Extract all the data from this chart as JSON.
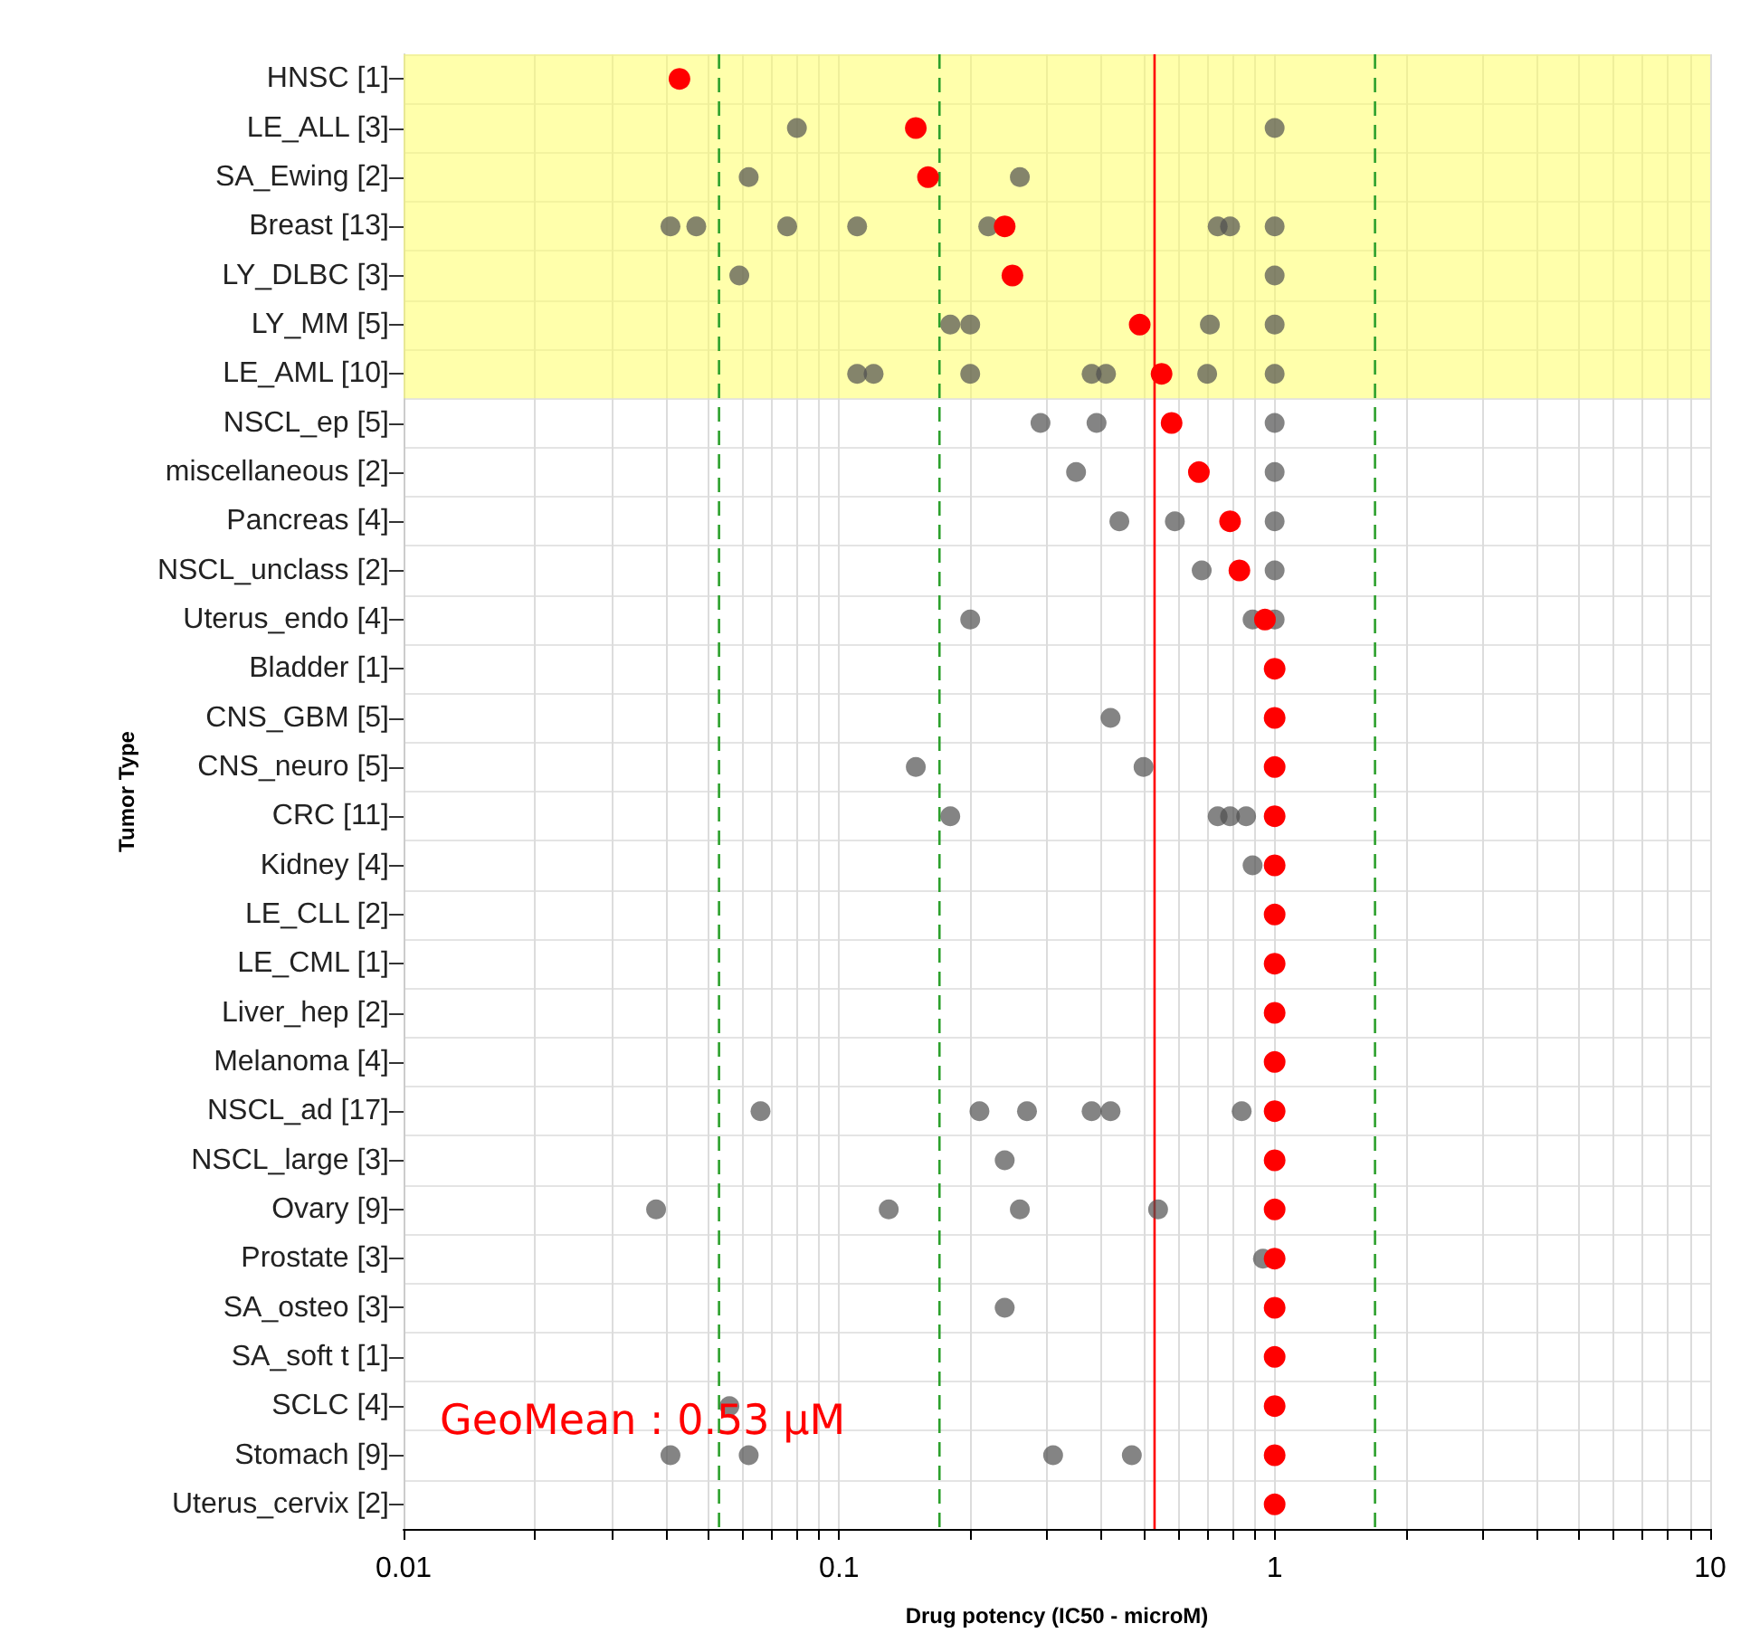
{
  "chart_data": {
    "type": "scatter",
    "orientation": "horizontal",
    "xlabel": "Drug potency (IC50 - microM)",
    "ylabel": "Tumor Type",
    "categories": [
      "HNSC [1]",
      "LE_ALL [3]",
      "SA_Ewing [2]",
      "Breast [13]",
      "LY_DLBC [3]",
      "LY_MM [5]",
      "LE_AML [10]",
      "NSCL_ep [5]",
      "miscellaneous [2]",
      "Pancreas [4]",
      "NSCL_unclass [2]",
      "Uterus_endo [4]",
      "Bladder [1]",
      "CNS_GBM [5]",
      "CNS_neuro [5]",
      "CRC [11]",
      "Kidney [4]",
      "LE_CLL [2]",
      "LE_CML [1]",
      "Liver_hep [2]",
      "Melanoma [4]",
      "NSCL_ad [17]",
      "NSCL_large [3]",
      "Ovary [9]",
      "Prostate [3]",
      "SA_osteo [3]",
      "SA_soft t [1]",
      "SCLC [4]",
      "Stomach [9]",
      "Uterus_cervix [2]"
    ],
    "series": [
      {
        "color": "#505050",
        "x": [
          "LE_ALL [3]",
          "LE_ALL [3]",
          "SA_Ewing [2]",
          "SA_Ewing [2]",
          "Breast [13]",
          "Breast [13]",
          "Breast [13]",
          "Breast [13]",
          "Breast [13]",
          "Breast [13]",
          "Breast [13]",
          "Breast [13]",
          "LY_DLBC [3]",
          "LY_DLBC [3]",
          "LY_MM [5]",
          "LY_MM [5]",
          "LY_MM [5]",
          "LY_MM [5]",
          "LE_AML [10]",
          "LE_AML [10]",
          "LE_AML [10]",
          "LE_AML [10]",
          "LE_AML [10]",
          "LE_AML [10]",
          "LE_AML [10]",
          "NSCL_ep [5]",
          "NSCL_ep [5]",
          "NSCL_ep [5]",
          "miscellaneous [2]",
          "miscellaneous [2]",
          "Pancreas [4]",
          "Pancreas [4]",
          "Pancreas [4]",
          "NSCL_unclass [2]",
          "NSCL_unclass [2]",
          "Uterus_endo [4]",
          "Uterus_endo [4]",
          "Uterus_endo [4]",
          "CNS_GBM [5]",
          "CNS_neuro [5]",
          "CNS_neuro [5]",
          "CRC [11]",
          "CRC [11]",
          "CRC [11]",
          "CRC [11]",
          "Kidney [4]",
          "NSCL_ad [17]",
          "NSCL_ad [17]",
          "NSCL_ad [17]",
          "NSCL_ad [17]",
          "NSCL_ad [17]",
          "NSCL_ad [17]",
          "NSCL_large [3]",
          "Ovary [9]",
          "Ovary [9]",
          "Ovary [9]",
          "Ovary [9]",
          "Prostate [3]",
          "SA_osteo [3]",
          "SCLC [4]",
          "Stomach [9]",
          "Stomach [9]",
          "Stomach [9]",
          "Stomach [9]"
        ],
        "values": [
          0.08,
          1,
          0.062,
          0.26,
          0.041,
          0.047,
          0.076,
          0.11,
          0.22,
          0.74,
          0.79,
          1,
          0.059,
          1,
          0.18,
          0.2,
          0.71,
          1,
          0.11,
          0.12,
          0.2,
          0.38,
          0.41,
          0.7,
          1,
          0.29,
          0.39,
          1,
          0.35,
          1,
          0.44,
          0.59,
          1,
          0.68,
          1,
          0.2,
          0.89,
          1,
          0.42,
          0.15,
          0.5,
          0.18,
          0.74,
          0.79,
          0.86,
          0.89,
          0.066,
          0.21,
          0.27,
          0.38,
          0.42,
          0.84,
          0.24,
          0.038,
          0.13,
          0.26,
          0.54,
          0.94,
          0.24,
          0.056,
          0.041,
          0.062,
          0.31,
          0.47
        ]
      },
      {
        "color": "#ff0000",
        "values": [
          0.043,
          0.15,
          0.16,
          0.24,
          0.25,
          0.49,
          0.55,
          0.58,
          0.67,
          0.79,
          0.83,
          0.95,
          1,
          1,
          1,
          1,
          1,
          1,
          1,
          1,
          1,
          1,
          1,
          1,
          1,
          1,
          1,
          1,
          1,
          1
        ]
      }
    ],
    "xlim": [
      0.01,
      10
    ],
    "xticks": [
      0.01,
      {
        "value": 0.02,
        "label": null
      },
      {
        "value": 0.03,
        "label": null
      },
      {
        "value": 0.04,
        "label": null
      },
      {
        "value": 0.05,
        "label": null
      },
      {
        "value": 0.06,
        "label": null
      },
      {
        "value": 0.07,
        "label": null
      },
      {
        "value": 0.08,
        "label": null
      },
      {
        "value": 0.09,
        "label": null
      },
      0.1,
      {
        "value": 0.2,
        "label": null
      },
      {
        "value": 0.3,
        "label": null
      },
      {
        "value": 0.4,
        "label": null
      },
      {
        "value": 0.5,
        "label": null
      },
      {
        "value": 0.6,
        "label": null
      },
      {
        "value": 0.7,
        "label": null
      },
      {
        "value": 0.8,
        "label": null
      },
      {
        "value": 0.9,
        "label": null
      },
      1,
      {
        "value": 2,
        "label": null
      },
      {
        "value": 3,
        "label": null
      },
      {
        "value": 4,
        "label": null
      },
      {
        "value": 5,
        "label": null
      },
      {
        "value": 6,
        "label": null
      },
      {
        "value": 7,
        "label": null
      },
      {
        "value": 8,
        "label": null
      },
      {
        "value": 9,
        "label": null
      },
      10
    ],
    "log": "x",
    "grid": true,
    "marker": "circle",
    "ref_lines": [
      {
        "axis": "x",
        "value": 0.053,
        "color": "#2ca02c",
        "line_style": "dashed"
      },
      {
        "axis": "x",
        "value": 0.17,
        "color": "#2ca02c",
        "line_style": "dashed"
      },
      {
        "axis": "x",
        "value": 1.7,
        "color": "#2ca02c",
        "line_style": "dashed"
      },
      {
        "axis": "x",
        "value": 0.53,
        "color": "#ff0000",
        "line_style": "solid"
      }
    ],
    "bands": [
      {
        "axis": "y",
        "from": "HNSC [1]",
        "to": "LE_AML [10]",
        "color": "#ffff66"
      }
    ],
    "annotations": [
      "GeoMean : 0.53 µM"
    ]
  }
}
